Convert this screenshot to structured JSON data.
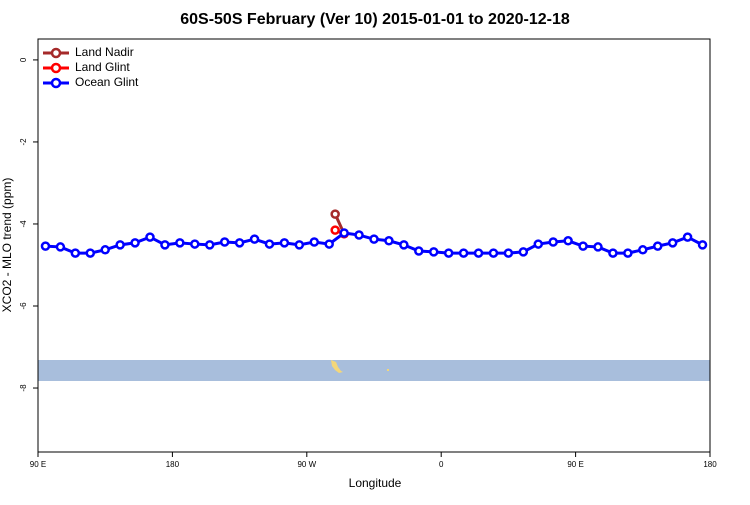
{
  "chart_data": {
    "type": "line",
    "title": "60S-50S February (Ver 10)   2015-01-01 to 2020-12-18",
    "x_label": "Longitude",
    "y_label": "XCO2 - MLO trend (ppm)",
    "xlim": [
      90,
      540
    ],
    "xticks": [
      {
        "value": 90,
        "label": "90 E"
      },
      180,
      {
        "value": 270,
        "label": "90 W"
      },
      {
        "value": 360,
        "label": "0"
      },
      {
        "value": 450,
        "label": "90 E"
      },
      {
        "value": 540,
        "label": "180"
      }
    ],
    "ylim": [
      -9.56,
      0.51
    ],
    "yticks": [
      0,
      -2,
      -4,
      -6,
      -8
    ],
    "legend": "topleft",
    "series": [
      {
        "name": "Land Nadir",
        "color": "#a52a2a",
        "x": [
          289,
          295
        ],
        "values": [
          -3.76,
          -4.24
        ]
      },
      {
        "name": "Land Glint",
        "color": "#ff0000",
        "x": [
          289,
          295
        ],
        "values": [
          -4.15,
          -4.24
        ]
      },
      {
        "name": "Ocean Glint",
        "color": "#0000ff",
        "x": [
          95,
          105,
          115,
          125,
          135,
          145,
          155,
          165,
          175,
          185,
          195,
          205,
          215,
          225,
          235,
          245,
          255,
          265,
          275,
          285,
          295,
          305,
          315,
          325,
          335,
          345,
          355,
          365,
          375,
          385,
          395,
          405,
          415,
          425,
          435,
          445,
          455,
          465,
          475,
          485,
          495,
          505,
          515,
          525,
          535
        ],
        "values": [
          -4.54,
          -4.56,
          -4.71,
          -4.71,
          -4.63,
          -4.51,
          -4.46,
          -4.32,
          -4.51,
          -4.46,
          -4.49,
          -4.51,
          -4.44,
          -4.46,
          -4.37,
          -4.49,
          -4.46,
          -4.51,
          -4.44,
          -4.49,
          -4.22,
          -4.27,
          -4.37,
          -4.41,
          -4.51,
          -4.66,
          -4.68,
          -4.71,
          -4.71,
          -4.71,
          -4.71,
          -4.71,
          -4.68,
          -4.49,
          -4.44,
          -4.41,
          -4.54,
          -4.56,
          -4.71,
          -4.71,
          -4.63,
          -4.54,
          -4.46,
          -4.32,
          -4.51
        ]
      }
    ]
  }
}
